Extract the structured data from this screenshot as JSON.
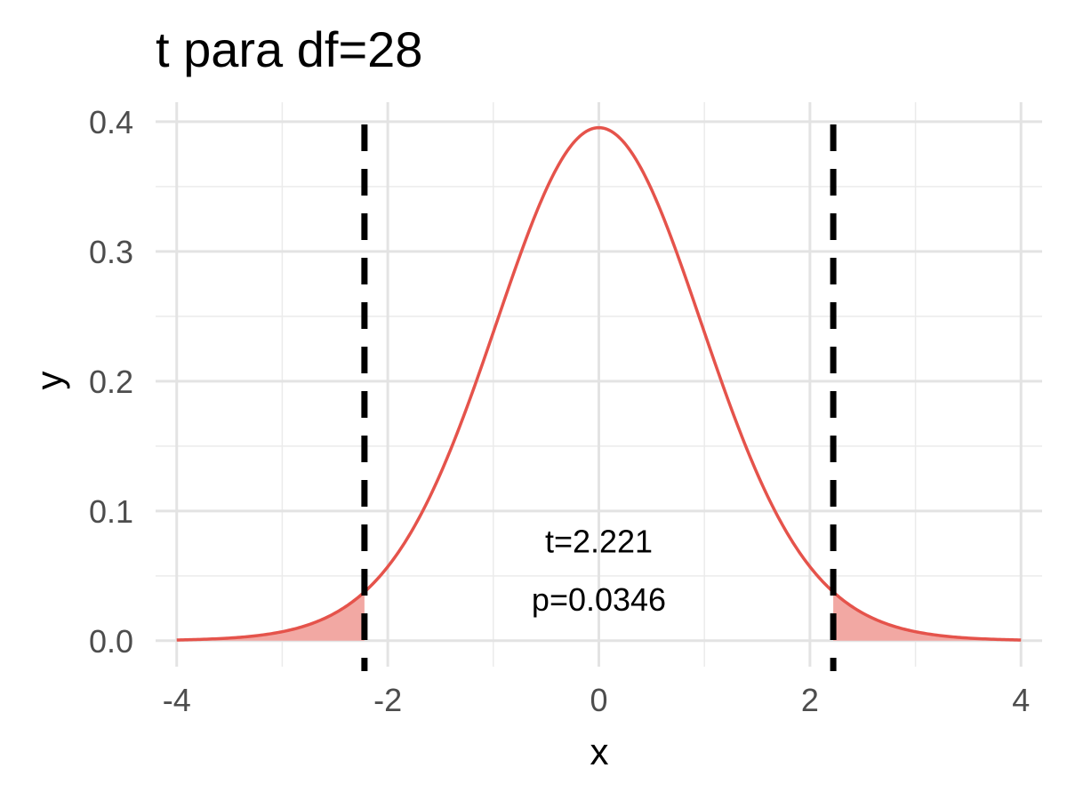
{
  "chart_data": {
    "type": "line",
    "title": "t para df=28",
    "xlabel": "x",
    "ylabel": "y",
    "xlim": [
      -4.2,
      4.2
    ],
    "ylim": [
      -0.02,
      0.415
    ],
    "x_ticks": [
      -4,
      -2,
      0,
      2,
      4
    ],
    "x_tick_labels": [
      "-4",
      "-2",
      "0",
      "2",
      "4"
    ],
    "y_ticks": [
      0,
      0.1,
      0.2,
      0.3,
      0.4
    ],
    "y_tick_labels": [
      "0.0",
      "0.1",
      "0.2",
      "0.3",
      "0.4"
    ],
    "grid": true,
    "series": [
      {
        "distribution": "Student t",
        "df": 28,
        "x_range": [
          -4,
          4
        ],
        "peak_y": 0.395,
        "color": "#e5534b"
      }
    ],
    "critical_value": 2.221,
    "shaded_tails": [
      [
        -4,
        -2.221
      ],
      [
        2.221,
        4
      ]
    ],
    "shade_color": "#f2a8a3",
    "critical_line_color": "#000000",
    "annotations": [
      {
        "text": "t=2.221",
        "x": 0,
        "y": 0.068
      },
      {
        "text": "p=0.0346",
        "x": 0,
        "y": 0.023
      }
    ]
  }
}
